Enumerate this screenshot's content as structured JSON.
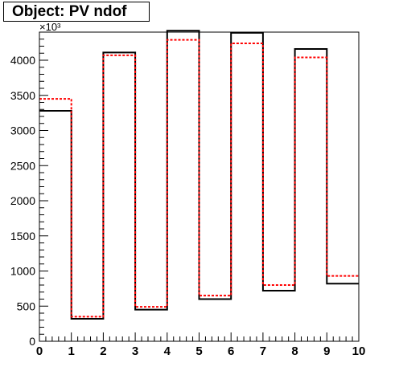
{
  "title": "Object: PV ndof",
  "chart_data": {
    "type": "histogram",
    "x_edges": [
      0,
      1,
      2,
      3,
      4,
      5,
      6,
      7,
      8,
      9,
      10
    ],
    "xlim": [
      0,
      10
    ],
    "ylim": [
      0,
      4400
    ],
    "y_multiplier_label": "×10³",
    "x_ticks": [
      0,
      1,
      2,
      3,
      4,
      5,
      6,
      7,
      8,
      9,
      10
    ],
    "y_ticks": [
      0,
      500,
      1000,
      1500,
      2000,
      2500,
      3000,
      3500,
      4000
    ],
    "grid": false,
    "series": [
      {
        "style": "solid",
        "color": "#000000",
        "values": [
          3280,
          320,
          4110,
          450,
          4420,
          600,
          4390,
          720,
          4160,
          820
        ]
      },
      {
        "style": "dotted",
        "color": "#ff0000",
        "values": [
          3450,
          350,
          4070,
          490,
          4290,
          650,
          4240,
          800,
          4040,
          930
        ]
      }
    ]
  }
}
